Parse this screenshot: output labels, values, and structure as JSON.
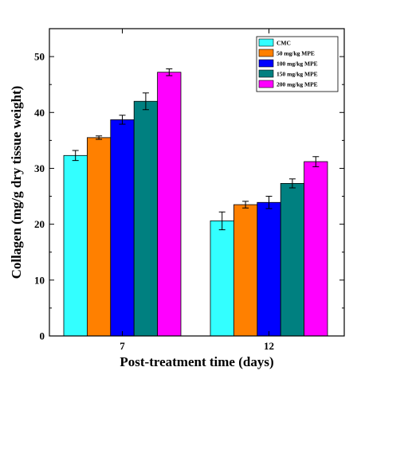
{
  "chart_data": {
    "type": "bar",
    "categories": [
      "7",
      "12"
    ],
    "series": [
      {
        "name": "CMC",
        "color": "#33ffff",
        "values": [
          32.3,
          20.6
        ],
        "errors": [
          0.9,
          1.6
        ]
      },
      {
        "name": "50 mg/kg MPE",
        "color": "#ff8000",
        "values": [
          35.5,
          23.5
        ],
        "errors": [
          0.3,
          0.6
        ]
      },
      {
        "name": "100 mg/kg MPE",
        "color": "#0000ff",
        "values": [
          38.7,
          23.9
        ],
        "errors": [
          0.8,
          1.1
        ]
      },
      {
        "name": "150 mg/kg MPE",
        "color": "#008080",
        "values": [
          42.0,
          27.3
        ],
        "errors": [
          1.5,
          0.8
        ]
      },
      {
        "name": "200 mg/kg MPE",
        "color": "#ff00ff",
        "values": [
          47.2,
          31.2
        ],
        "errors": [
          0.6,
          0.9
        ]
      }
    ],
    "xlabel": "Post-treatment time (days)",
    "ylabel": "Collagen (mg/g dry tissue weight)",
    "ylim": [
      0,
      55
    ],
    "yticks": [
      0,
      10,
      20,
      30,
      40,
      50
    ],
    "legend_position": "top-right",
    "grid": false,
    "error_bars": true
  }
}
